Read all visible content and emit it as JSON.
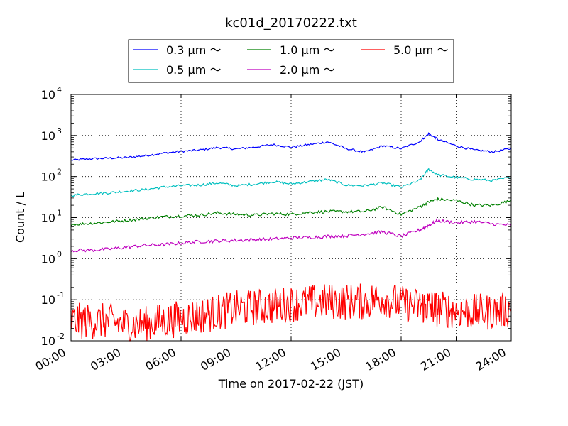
{
  "chart_data": {
    "type": "line",
    "title": "kc01d_20170222.txt",
    "xlabel": "Time on 2017-02-22 (JST)",
    "ylabel": "Count / L",
    "yscale": "log",
    "ylim": [
      0.01,
      10000
    ],
    "xlim": [
      "2017-02-22 00:00",
      "2017-02-23 00:00"
    ],
    "x_ticks": [
      "00:00",
      "03:00",
      "06:00",
      "09:00",
      "12:00",
      "15:00",
      "18:00",
      "21:00",
      "24:00"
    ],
    "y_ticks": [
      {
        "base": "10",
        "exp": "-2"
      },
      {
        "base": "10",
        "exp": "-1"
      },
      {
        "base": "10",
        "exp": "0"
      },
      {
        "base": "10",
        "exp": "1"
      },
      {
        "base": "10",
        "exp": "2"
      },
      {
        "base": "10",
        "exp": "3"
      },
      {
        "base": "10",
        "exp": "4"
      }
    ],
    "grid": true,
    "legend_position": "top-center",
    "x_time": [
      "00:00",
      "01:00",
      "02:00",
      "03:00",
      "04:00",
      "05:00",
      "06:00",
      "07:00",
      "08:00",
      "09:00",
      "10:00",
      "11:00",
      "12:00",
      "13:00",
      "14:00",
      "15:00",
      "16:00",
      "17:00",
      "18:00",
      "19:00",
      "19:30",
      "20:00",
      "21:00",
      "22:00",
      "23:00",
      "24:00"
    ],
    "series": [
      {
        "name": "0.3 μm ～",
        "color": "#0000ff",
        "values": [
          250,
          270,
          280,
          290,
          320,
          370,
          410,
          440,
          510,
          470,
          520,
          600,
          520,
          600,
          700,
          480,
          390,
          560,
          480,
          700,
          1100,
          800,
          560,
          440,
          400,
          480
        ]
      },
      {
        "name": "0.5 μm ～",
        "color": "#00bfbf",
        "values": [
          35,
          38,
          40,
          44,
          48,
          55,
          60,
          62,
          70,
          60,
          65,
          75,
          66,
          75,
          85,
          62,
          60,
          70,
          55,
          80,
          150,
          110,
          95,
          85,
          80,
          95
        ]
      },
      {
        "name": "1.0 μm ～",
        "color": "#008000",
        "values": [
          6.8,
          7.2,
          7.8,
          8.5,
          9.5,
          10.5,
          11,
          11.5,
          13,
          12,
          11.5,
          12.5,
          12,
          13.5,
          14,
          14,
          14,
          18,
          12,
          18,
          24,
          28,
          26,
          20,
          20,
          26
        ]
      },
      {
        "name": "2.0 μm ～",
        "color": "#bf00bf",
        "values": [
          1.6,
          1.6,
          1.7,
          1.9,
          2.1,
          2.2,
          2.4,
          2.6,
          2.7,
          2.8,
          2.9,
          3.0,
          3.2,
          3.3,
          3.5,
          3.6,
          4.0,
          4.5,
          3.5,
          5.0,
          6.5,
          8.5,
          7.5,
          8,
          7,
          6.5
        ]
      },
      {
        "name": "5.0 μm ～",
        "color": "#ff0000",
        "values": [
          0.03,
          0.03,
          0.03,
          0.025,
          0.025,
          0.03,
          0.035,
          0.04,
          0.05,
          0.06,
          0.065,
          0.07,
          0.08,
          0.085,
          0.09,
          0.09,
          0.09,
          0.11,
          0.08,
          0.07,
          0.07,
          0.06,
          0.055,
          0.05,
          0.05,
          0.06
        ]
      }
    ]
  }
}
